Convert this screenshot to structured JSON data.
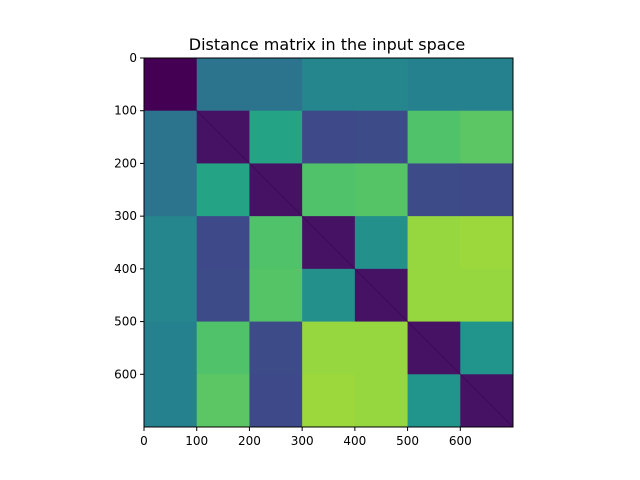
{
  "chart_data": {
    "type": "heatmap",
    "title": "Distance matrix in the input space",
    "xlabel": "",
    "ylabel": "",
    "matrix_size": 700,
    "xlim": [
      0,
      700
    ],
    "ylim": [
      700,
      0
    ],
    "x_ticks": [
      "0",
      "100",
      "200",
      "300",
      "400",
      "500",
      "600"
    ],
    "y_ticks": [
      "0",
      "100",
      "200",
      "300",
      "400",
      "500",
      "600"
    ],
    "x_tick_values": [
      0,
      100,
      200,
      300,
      400,
      500,
      600
    ],
    "y_tick_values": [
      0,
      100,
      200,
      300,
      400,
      500,
      600
    ],
    "colormap": "viridis",
    "grid": false,
    "legend": "none",
    "block_boundaries": [
      0,
      100,
      200,
      300,
      400,
      500,
      600,
      700
    ],
    "block_values": [
      [
        0.0,
        0.38,
        0.38,
        0.46,
        0.46,
        0.44,
        0.44
      ],
      [
        0.38,
        0.05,
        0.58,
        0.22,
        0.23,
        0.72,
        0.74
      ],
      [
        0.38,
        0.58,
        0.05,
        0.72,
        0.73,
        0.23,
        0.22
      ],
      [
        0.46,
        0.22,
        0.72,
        0.05,
        0.5,
        0.84,
        0.85
      ],
      [
        0.46,
        0.23,
        0.73,
        0.5,
        0.05,
        0.84,
        0.84
      ],
      [
        0.44,
        0.72,
        0.23,
        0.84,
        0.84,
        0.05,
        0.52
      ],
      [
        0.44,
        0.74,
        0.22,
        0.85,
        0.84,
        0.52,
        0.05
      ]
    ]
  }
}
